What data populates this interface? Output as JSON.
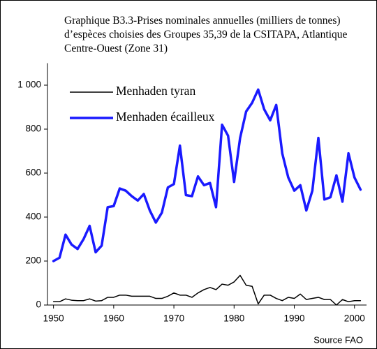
{
  "chart_data": {
    "type": "line",
    "title": "Graphique B3.3-Prises nominales annuelles (milliers de tonnes) d’espèces choisies des Groupes 35,39 de la CSITAPA, Atlantique Centre-Ouest (Zone 31)",
    "source": "Source FAO",
    "x": [
      1950,
      1951,
      1952,
      1953,
      1954,
      1955,
      1956,
      1957,
      1958,
      1959,
      1960,
      1961,
      1962,
      1963,
      1964,
      1965,
      1966,
      1967,
      1968,
      1969,
      1970,
      1971,
      1972,
      1973,
      1974,
      1975,
      1976,
      1977,
      1978,
      1979,
      1980,
      1981,
      1982,
      1983,
      1984,
      1985,
      1986,
      1987,
      1988,
      1989,
      1990,
      1991,
      1992,
      1993,
      1994,
      1995,
      1996,
      1997,
      1998,
      1999,
      2000,
      2001
    ],
    "series": [
      {
        "name": "Menhaden tyran",
        "color": "#000000",
        "width": 1.5,
        "values": [
          15,
          15,
          28,
          22,
          20,
          20,
          28,
          18,
          20,
          35,
          35,
          45,
          45,
          40,
          40,
          40,
          40,
          30,
          30,
          40,
          55,
          45,
          45,
          35,
          55,
          70,
          80,
          70,
          95,
          90,
          105,
          135,
          90,
          85,
          5,
          45,
          45,
          30,
          20,
          35,
          30,
          50,
          25,
          30,
          35,
          25,
          25,
          0,
          25,
          15,
          20,
          20
        ]
      },
      {
        "name": "Menhaden écailleux",
        "color": "#1a1aff",
        "width": 3.5,
        "values": [
          200,
          215,
          320,
          275,
          255,
          300,
          360,
          240,
          270,
          445,
          450,
          530,
          520,
          495,
          475,
          505,
          430,
          375,
          420,
          535,
          550,
          725,
          500,
          495,
          585,
          545,
          555,
          445,
          820,
          770,
          560,
          760,
          880,
          920,
          980,
          890,
          840,
          910,
          690,
          580,
          520,
          545,
          430,
          520,
          760,
          480,
          490,
          590,
          470,
          690,
          580,
          525
        ]
      }
    ],
    "xlim": [
      1949,
      2002
    ],
    "xticks": [
      1950,
      1960,
      1970,
      1980,
      1990,
      2000
    ],
    "ylim": [
      0,
      1100
    ],
    "yticks": [
      0,
      200,
      400,
      600,
      800,
      {
        "value": 1000,
        "label": "1 000"
      }
    ],
    "grid": false,
    "legend": "upper left"
  }
}
